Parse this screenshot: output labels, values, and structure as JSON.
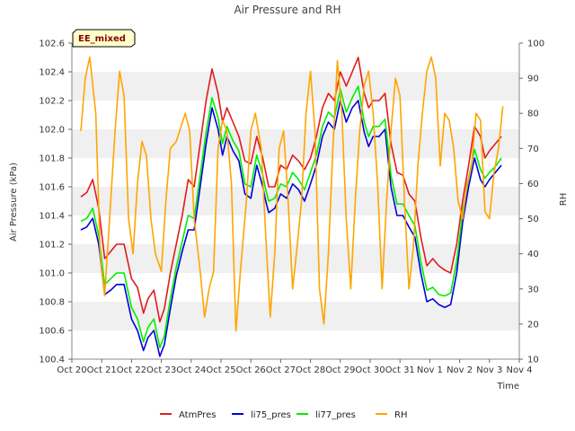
{
  "chart_data": {
    "type": "line",
    "title": "Air Pressure and RH",
    "xlabel": "Time",
    "ylabel": "Air Pressure (kPa)",
    "y2label": "RH",
    "badge": "EE_mixed",
    "x_ticks": [
      "Oct 20",
      "Oct 21",
      "Oct 22",
      "Oct 23",
      "Oct 24",
      "Oct 25",
      "Oct 26",
      "Oct 27",
      "Oct 28",
      "Oct 29",
      "Oct 30",
      "Oct 31",
      "Nov 1",
      "Nov 2",
      "Nov 3",
      "Nov 4"
    ],
    "x_tick_values": [
      0,
      1,
      2,
      3,
      4,
      5,
      6,
      7,
      8,
      9,
      10,
      11,
      12,
      13,
      14,
      15
    ],
    "xlim": [
      0,
      15
    ],
    "ylim": [
      100.4,
      102.6
    ],
    "y_ticks": [
      "100.4",
      "100.6",
      "100.8",
      "101.0",
      "101.2",
      "101.4",
      "101.6",
      "101.8",
      "102.0",
      "102.2",
      "102.4",
      "102.6"
    ],
    "y_tick_values": [
      100.4,
      100.6,
      100.8,
      101.0,
      101.2,
      101.4,
      101.6,
      101.8,
      102.0,
      102.2,
      102.4,
      102.6
    ],
    "y2lim": [
      10,
      100
    ],
    "y2_ticks": [
      "10",
      "20",
      "30",
      "40",
      "50",
      "60",
      "70",
      "80",
      "90",
      "100"
    ],
    "y2_tick_values": [
      10,
      20,
      30,
      40,
      50,
      60,
      70,
      80,
      90,
      100
    ],
    "grid": "horizontal bands",
    "legend_position": "bottom",
    "series": [
      {
        "name": "AtmPres",
        "color": "#e31a1c",
        "axis": "left",
        "x": [
          0.3,
          0.5,
          0.7,
          0.9,
          1.1,
          1.3,
          1.5,
          1.75,
          2.0,
          2.2,
          2.4,
          2.55,
          2.75,
          2.95,
          3.1,
          3.3,
          3.5,
          3.7,
          3.9,
          4.1,
          4.3,
          4.5,
          4.7,
          4.9,
          5.05,
          5.2,
          5.4,
          5.6,
          5.8,
          6.0,
          6.2,
          6.4,
          6.5,
          6.6,
          6.8,
          7.0,
          7.2,
          7.4,
          7.6,
          7.8,
          8.0,
          8.2,
          8.4,
          8.6,
          8.8,
          9.0,
          9.2,
          9.4,
          9.6,
          9.8,
          9.95,
          10.1,
          10.3,
          10.5,
          10.7,
          10.9,
          11.1,
          11.3,
          11.5,
          11.7,
          11.9,
          12.1,
          12.3,
          12.5,
          12.7,
          12.9,
          13.1,
          13.3,
          13.5,
          13.7,
          13.85,
          14.0,
          14.2,
          14.4
        ],
        "values": [
          101.53,
          101.56,
          101.65,
          101.45,
          101.1,
          101.15,
          101.2,
          101.2,
          100.96,
          100.9,
          100.72,
          100.82,
          100.88,
          100.66,
          100.75,
          101.0,
          101.2,
          101.4,
          101.65,
          101.6,
          101.9,
          102.2,
          102.42,
          102.25,
          102.05,
          102.15,
          102.05,
          101.95,
          101.78,
          101.76,
          101.95,
          101.8,
          101.7,
          101.6,
          101.6,
          101.75,
          101.72,
          101.82,
          101.78,
          101.72,
          101.8,
          101.95,
          102.15,
          102.25,
          102.2,
          102.4,
          102.3,
          102.4,
          102.5,
          102.25,
          102.15,
          102.2,
          102.2,
          102.25,
          101.9,
          101.7,
          101.68,
          101.55,
          101.5,
          101.25,
          101.05,
          101.1,
          101.05,
          101.02,
          101.0,
          101.2,
          101.5,
          101.75,
          102.02,
          101.95,
          101.8,
          101.85,
          101.9,
          101.95
        ]
      },
      {
        "name": "li75_pres",
        "color": "#0000dd",
        "axis": "left",
        "x": [
          0.3,
          0.5,
          0.7,
          0.9,
          1.1,
          1.3,
          1.5,
          1.75,
          2.0,
          2.2,
          2.4,
          2.55,
          2.75,
          2.95,
          3.1,
          3.3,
          3.5,
          3.7,
          3.9,
          4.1,
          4.3,
          4.5,
          4.7,
          4.9,
          5.05,
          5.2,
          5.4,
          5.6,
          5.8,
          6.0,
          6.2,
          6.4,
          6.5,
          6.6,
          6.8,
          7.0,
          7.2,
          7.4,
          7.6,
          7.8,
          8.0,
          8.2,
          8.4,
          8.6,
          8.8,
          9.0,
          9.2,
          9.4,
          9.6,
          9.8,
          9.95,
          10.1,
          10.3,
          10.5,
          10.7,
          10.9,
          11.1,
          11.3,
          11.5,
          11.7,
          11.9,
          12.1,
          12.3,
          12.5,
          12.7,
          12.9,
          13.1,
          13.3,
          13.5,
          13.7,
          13.85,
          14.0,
          14.2,
          14.4
        ],
        "values": [
          101.3,
          101.32,
          101.38,
          101.2,
          100.85,
          100.88,
          100.92,
          100.92,
          100.68,
          100.6,
          100.46,
          100.55,
          100.6,
          100.42,
          100.5,
          100.75,
          100.98,
          101.15,
          101.3,
          101.3,
          101.6,
          101.9,
          102.15,
          102.0,
          101.82,
          101.95,
          101.85,
          101.78,
          101.55,
          101.52,
          101.75,
          101.6,
          101.5,
          101.42,
          101.45,
          101.55,
          101.52,
          101.62,
          101.58,
          101.5,
          101.62,
          101.75,
          101.95,
          102.05,
          102.0,
          102.2,
          102.05,
          102.15,
          102.2,
          101.98,
          101.88,
          101.95,
          101.95,
          102.0,
          101.6,
          101.4,
          101.4,
          101.32,
          101.25,
          101.0,
          100.8,
          100.82,
          100.78,
          100.76,
          100.78,
          101.0,
          101.35,
          101.6,
          101.8,
          101.65,
          101.6,
          101.65,
          101.7,
          101.75
        ]
      },
      {
        "name": "li77_pres",
        "color": "#00ee00",
        "axis": "left",
        "x": [
          0.3,
          0.5,
          0.7,
          0.9,
          1.1,
          1.3,
          1.5,
          1.75,
          2.0,
          2.2,
          2.4,
          2.55,
          2.75,
          2.95,
          3.1,
          3.3,
          3.5,
          3.7,
          3.9,
          4.1,
          4.3,
          4.5,
          4.7,
          4.9,
          5.05,
          5.2,
          5.4,
          5.6,
          5.8,
          6.0,
          6.2,
          6.4,
          6.5,
          6.6,
          6.8,
          7.0,
          7.2,
          7.4,
          7.6,
          7.8,
          8.0,
          8.2,
          8.4,
          8.6,
          8.8,
          9.0,
          9.2,
          9.4,
          9.6,
          9.8,
          9.95,
          10.1,
          10.3,
          10.5,
          10.7,
          10.9,
          11.1,
          11.3,
          11.5,
          11.7,
          11.9,
          12.1,
          12.3,
          12.5,
          12.7,
          12.9,
          13.1,
          13.3,
          13.5,
          13.7,
          13.85,
          14.0,
          14.2,
          14.4
        ],
        "values": [
          101.36,
          101.38,
          101.45,
          101.26,
          100.92,
          100.96,
          101.0,
          101.0,
          100.76,
          100.68,
          100.52,
          100.62,
          100.68,
          100.48,
          100.56,
          100.82,
          101.04,
          101.22,
          101.4,
          101.38,
          101.68,
          101.98,
          102.22,
          102.08,
          101.9,
          102.02,
          101.92,
          101.85,
          101.62,
          101.6,
          101.82,
          101.68,
          101.58,
          101.5,
          101.52,
          101.62,
          101.6,
          101.7,
          101.65,
          101.58,
          101.7,
          101.82,
          102.02,
          102.12,
          102.08,
          102.28,
          102.12,
          102.22,
          102.3,
          102.05,
          101.95,
          102.02,
          102.02,
          102.07,
          101.68,
          101.48,
          101.48,
          101.4,
          101.33,
          101.08,
          100.88,
          100.9,
          100.85,
          100.84,
          100.86,
          101.08,
          101.42,
          101.66,
          101.86,
          101.72,
          101.66,
          101.7,
          101.74,
          101.8
        ]
      },
      {
        "name": "RH",
        "color": "#ffa500",
        "axis": "right",
        "x": [
          0.3,
          0.45,
          0.6,
          0.8,
          0.95,
          1.1,
          1.3,
          1.45,
          1.6,
          1.75,
          1.9,
          2.05,
          2.2,
          2.35,
          2.5,
          2.65,
          2.8,
          3.0,
          3.15,
          3.3,
          3.5,
          3.65,
          3.8,
          3.95,
          4.1,
          4.3,
          4.45,
          4.6,
          4.75,
          4.9,
          5.05,
          5.2,
          5.35,
          5.5,
          5.65,
          5.85,
          6.0,
          6.15,
          6.35,
          6.5,
          6.65,
          6.8,
          6.95,
          7.1,
          7.25,
          7.4,
          7.55,
          7.7,
          7.85,
          8.0,
          8.15,
          8.3,
          8.45,
          8.6,
          8.75,
          8.9,
          9.05,
          9.2,
          9.35,
          9.5,
          9.65,
          9.8,
          9.95,
          10.1,
          10.25,
          10.4,
          10.55,
          10.7,
          10.85,
          11.0,
          11.15,
          11.3,
          11.45,
          11.6,
          11.75,
          11.9,
          12.05,
          12.2,
          12.35,
          12.5,
          12.65,
          12.8,
          12.95,
          13.1,
          13.25,
          13.4,
          13.55,
          13.7,
          13.85,
          14.0,
          14.15,
          14.3,
          14.45
        ],
        "values": [
          75,
          90,
          96,
          80,
          40,
          28,
          55,
          75,
          92,
          85,
          50,
          40,
          60,
          72,
          68,
          50,
          40,
          35,
          55,
          70,
          72,
          76,
          80,
          75,
          50,
          35,
          22,
          30,
          35,
          70,
          78,
          75,
          60,
          18,
          35,
          55,
          75,
          80,
          70,
          45,
          22,
          40,
          70,
          75,
          55,
          30,
          42,
          55,
          80,
          92,
          75,
          30,
          20,
          40,
          70,
          95,
          80,
          50,
          30,
          55,
          75,
          88,
          92,
          80,
          60,
          30,
          55,
          75,
          90,
          85,
          55,
          30,
          42,
          65,
          80,
          92,
          96,
          90,
          65,
          80,
          78,
          70,
          55,
          50,
          60,
          65,
          80,
          78,
          52,
          50,
          63,
          70,
          82
        ]
      }
    ]
  }
}
